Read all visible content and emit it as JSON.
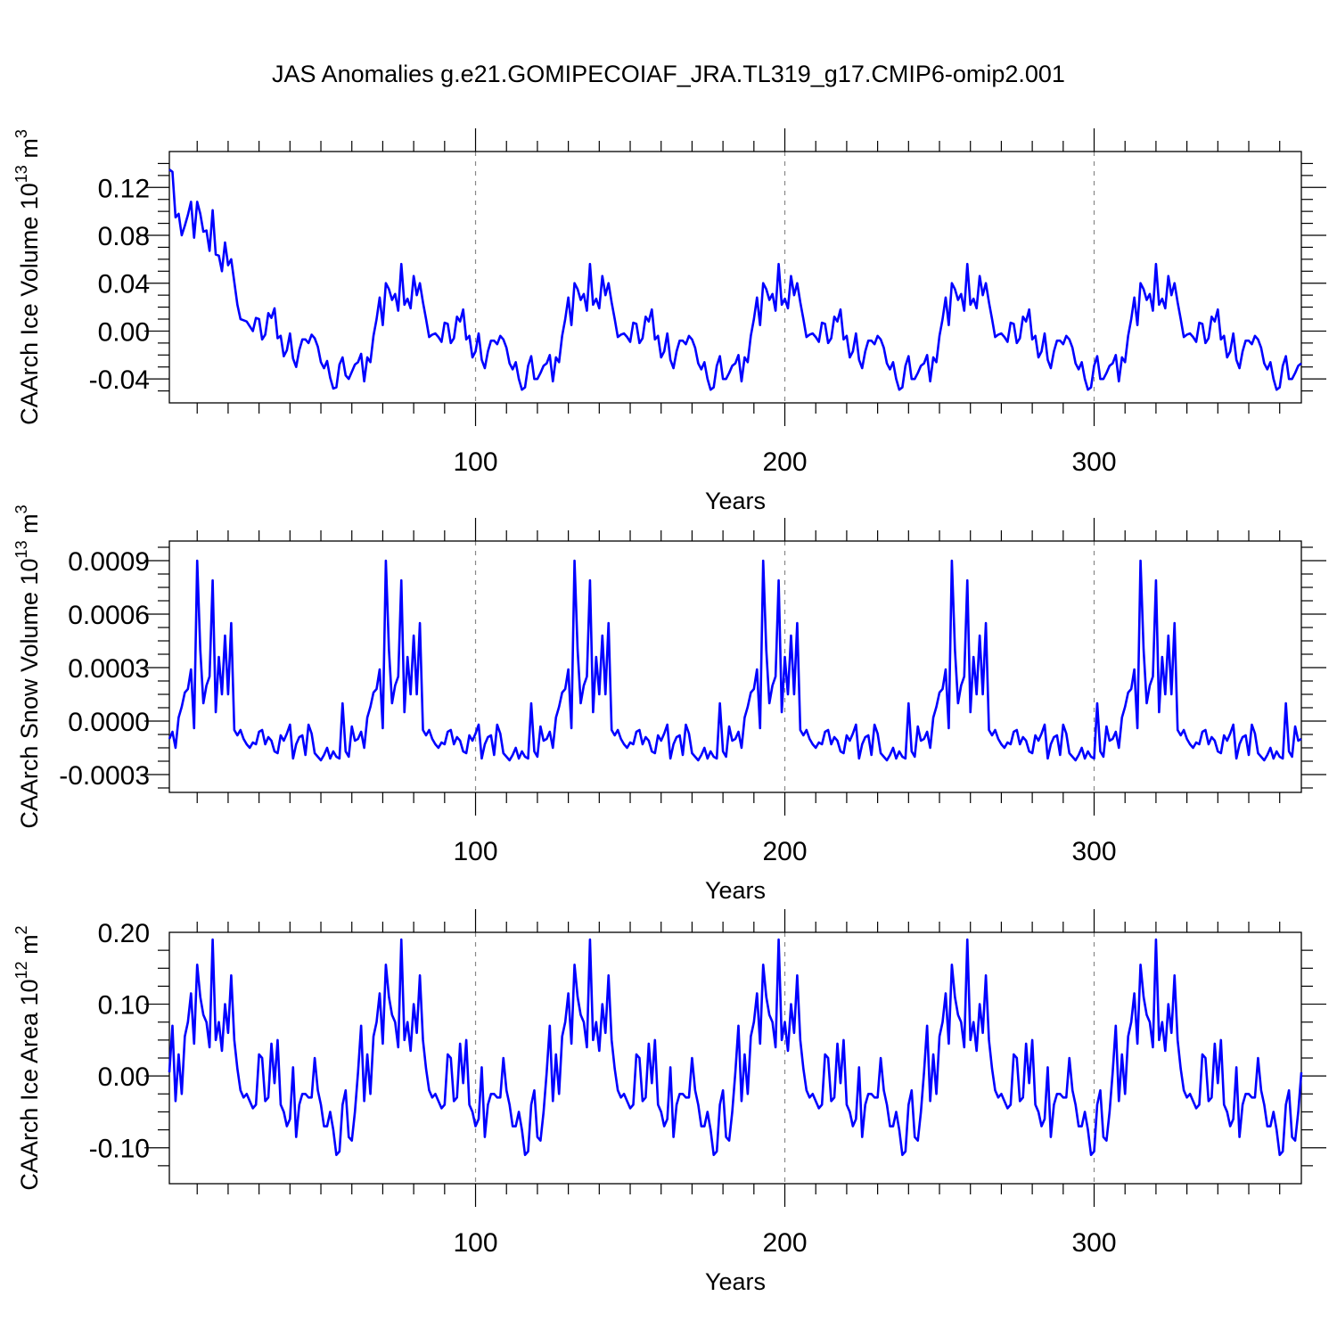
{
  "title": "JAS Anomalies g.e21.GOMIPECOIAF_JRA.TL319_g17.CMIP6-omip2.001",
  "colors": {
    "series": "#0000ff",
    "axis": "#000000",
    "grid": "#888888"
  },
  "chart_data": [
    {
      "type": "line",
      "panel": "ice-volume",
      "ylabel": {
        "text": "CAArch Ice Volume 10",
        "exp": "13",
        "unit": " m",
        "unit_exp": "3"
      },
      "xlabel": "Years",
      "xlim": [
        1,
        367
      ],
      "ylim": [
        -0.06,
        0.15
      ],
      "xticks": [
        100,
        200,
        300
      ],
      "xtick_labels": [
        "100",
        "200",
        "300"
      ],
      "yticks": [
        -0.04,
        0.0,
        0.04,
        0.08,
        0.12
      ],
      "ytick_labels": [
        "-0.04",
        "0.00",
        "0.04",
        "0.08",
        "0.12"
      ],
      "grid": "dashed vertical at x ticks",
      "cycle_start": 63,
      "cycle_length": 61,
      "head": [
        0.135,
        0.133,
        0.095,
        0.098,
        0.08,
        0.088,
        0.097,
        0.108,
        0.078,
        0.108,
        0.098,
        0.083,
        0.084,
        0.067,
        0.101,
        0.064,
        0.063,
        0.05,
        0.074,
        0.055,
        0.06,
        0.041,
        0.022,
        0.01,
        0.009,
        0.008,
        0.004,
        0.0,
        0.011,
        0.01,
        -0.007,
        -0.003,
        0.015,
        0.011,
        0.019,
        -0.006,
        -0.004,
        -0.021,
        -0.016,
        -0.002,
        -0.023,
        -0.03,
        -0.016,
        -0.007,
        -0.007,
        -0.01,
        -0.003,
        -0.006,
        -0.013,
        -0.026,
        -0.031,
        -0.025,
        -0.039,
        -0.048,
        -0.047,
        -0.028,
        -0.022,
        -0.037,
        -0.04,
        -0.034,
        -0.028,
        -0.026,
        -0.019
      ],
      "cycle": [
        -0.042,
        -0.022,
        -0.026,
        -0.004,
        0.01,
        0.028,
        0.005,
        0.04,
        0.035,
        0.026,
        0.031,
        0.017,
        0.056,
        0.022,
        0.027,
        0.019,
        0.046,
        0.03,
        0.04,
        0.024,
        0.01,
        -0.005,
        -0.003,
        -0.002,
        -0.005,
        -0.009,
        0.007,
        0.006,
        -0.01,
        -0.006,
        0.012,
        0.008,
        0.018,
        -0.007,
        -0.004,
        -0.022,
        -0.017,
        -0.002,
        -0.024,
        -0.031,
        -0.017,
        -0.008,
        -0.008,
        -0.011,
        -0.004,
        -0.007,
        -0.014,
        -0.027,
        -0.032,
        -0.026,
        -0.04,
        -0.049,
        -0.047,
        -0.029,
        -0.021,
        -0.04,
        -0.04,
        -0.035,
        -0.029,
        -0.027,
        -0.02
      ]
    },
    {
      "type": "line",
      "panel": "snow-volume",
      "ylabel": {
        "text": "CAArch Snow Volume 10",
        "exp": "13",
        "unit": " m",
        "unit_exp": "3"
      },
      "xlabel": "Years",
      "xlim": [
        1,
        367
      ],
      "ylim": [
        -0.0004,
        0.00101
      ],
      "xticks": [
        100,
        200,
        300
      ],
      "xtick_labels": [
        "100",
        "200",
        "300"
      ],
      "yticks": [
        -0.0003,
        0.0,
        0.0003,
        0.0006,
        0.0009
      ],
      "ytick_labels": [
        "-0.0003",
        "0.0000",
        "0.0003",
        "0.0006",
        "0.0009"
      ],
      "grid": "dashed vertical at x ticks",
      "cycle_start": 0,
      "cycle_length": 61,
      "head": [],
      "cycle": [
        -0.0001,
        -6e-05,
        -0.00015,
        2e-05,
        8e-05,
        0.00016,
        0.00018,
        0.00029,
        -4e-05,
        0.0009,
        0.0004,
        0.0001,
        0.0002,
        0.00025,
        0.00079,
        5e-05,
        0.00036,
        0.00015,
        0.00048,
        0.00015,
        0.00055,
        -5e-05,
        -8e-05,
        -5e-05,
        -0.0001,
        -0.00013,
        -0.00015,
        -0.00012,
        -0.00013,
        -6e-05,
        -5e-05,
        -0.00013,
        -9e-05,
        -0.00011,
        -0.00017,
        -0.00018,
        -8e-05,
        -0.00011,
        -7e-05,
        -2e-05,
        -0.00021,
        -0.00013,
        -9e-05,
        -8e-05,
        -0.00019,
        -2e-05,
        -7e-05,
        -0.00018,
        -0.0002,
        -0.00022,
        -0.00019,
        -0.00015,
        -0.00021,
        -0.00017,
        -0.0002,
        -0.00021,
        0.0001,
        -0.00017,
        -0.0002,
        -3e-05,
        -0.00011
      ]
    },
    {
      "type": "line",
      "panel": "ice-area",
      "ylabel": {
        "text": "CAArch Ice Area 10",
        "exp": "12",
        "unit": " m",
        "unit_exp": "2"
      },
      "xlabel": "Years",
      "xlim": [
        1,
        367
      ],
      "ylim": [
        -0.15,
        0.2
      ],
      "xticks": [
        100,
        200,
        300
      ],
      "xtick_labels": [
        "100",
        "200",
        "300"
      ],
      "yticks": [
        -0.1,
        0.0,
        0.1,
        0.2
      ],
      "ytick_labels": [
        "-0.10",
        "0.00",
        "0.10",
        "0.20"
      ],
      "grid": "dashed vertical at x ticks",
      "cycle_start": 0,
      "cycle_length": 61,
      "head": [],
      "cycle": [
        0.005,
        0.07,
        -0.035,
        0.03,
        -0.025,
        0.055,
        0.075,
        0.115,
        0.045,
        0.155,
        0.11,
        0.085,
        0.075,
        0.04,
        0.19,
        0.05,
        0.075,
        0.035,
        0.1,
        0.06,
        0.14,
        0.05,
        0.01,
        -0.02,
        -0.03,
        -0.025,
        -0.035,
        -0.045,
        -0.04,
        0.03,
        0.025,
        -0.035,
        -0.03,
        0.045,
        -0.01,
        0.05,
        -0.04,
        -0.05,
        -0.07,
        -0.06,
        0.012,
        -0.085,
        -0.04,
        -0.025,
        -0.025,
        -0.03,
        -0.03,
        0.025,
        -0.02,
        -0.04,
        -0.07,
        -0.07,
        -0.05,
        -0.075,
        -0.11,
        -0.105,
        -0.04,
        -0.02,
        -0.085,
        -0.09,
        -0.05
      ]
    }
  ]
}
